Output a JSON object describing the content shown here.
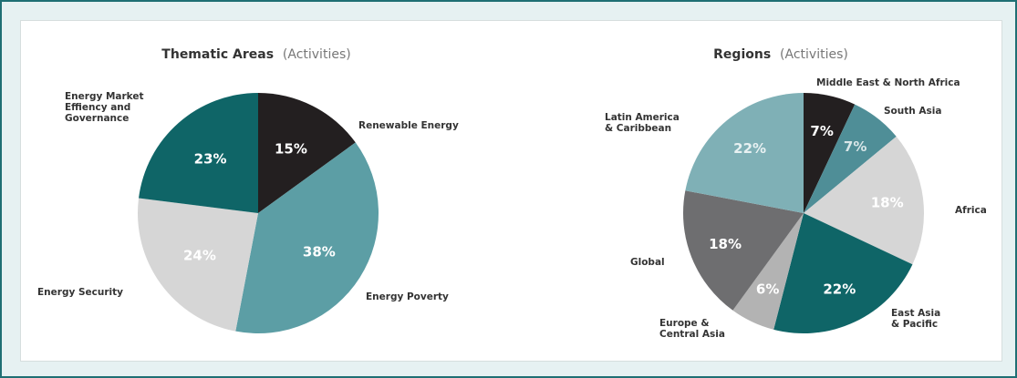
{
  "chart_data": [
    {
      "type": "pie",
      "title": "Thematic Areas",
      "subtitle": "(Activities)",
      "slices": [
        {
          "label": "Renewable Energy",
          "value": 15,
          "value_label": "15%",
          "color": "#231f20",
          "text_color": "#ffffff"
        },
        {
          "label": "Energy Poverty",
          "value": 38,
          "value_label": "38%",
          "color": "#5c9ea5",
          "text_color": "#ffffff"
        },
        {
          "label": "Energy Security",
          "value": 24,
          "value_label": "24%",
          "color": "#d6d6d6",
          "text_color": "#ffffff"
        },
        {
          "label": "Energy Market Effiency and Governance",
          "value": 23,
          "value_label": "23%",
          "color": "#0f6567",
          "text_color": "#ffffff"
        }
      ]
    },
    {
      "type": "pie",
      "title": "Regions",
      "subtitle": "(Activities)",
      "slices": [
        {
          "label": "Middle East & North Africa",
          "value": 7,
          "value_label": "7%",
          "color": "#231f20",
          "text_color": "#ffffff"
        },
        {
          "label": "South Asia",
          "value": 7,
          "value_label": "7%",
          "color": "#4f8e97",
          "text_color": "#d8e6e8"
        },
        {
          "label": "Africa",
          "value": 18,
          "value_label": "18%",
          "color": "#d6d6d6",
          "text_color": "#ffffff"
        },
        {
          "label": "East Asia & Pacific",
          "value": 22,
          "value_label": "22%",
          "color": "#0f6567",
          "text_color": "#ffffff"
        },
        {
          "label": "Europe & Central Asia",
          "value": 6,
          "value_label": "6%",
          "color": "#b3b3b3",
          "text_color": "#ffffff"
        },
        {
          "label": "Global",
          "value": 18,
          "value_label": "18%",
          "color": "#6e6e70",
          "text_color": "#ffffff"
        },
        {
          "label": "Latin America & Caribbean",
          "value": 22,
          "value_label": "22%",
          "color": "#7fb0b6",
          "text_color": "#e8f1f2"
        }
      ]
    }
  ]
}
